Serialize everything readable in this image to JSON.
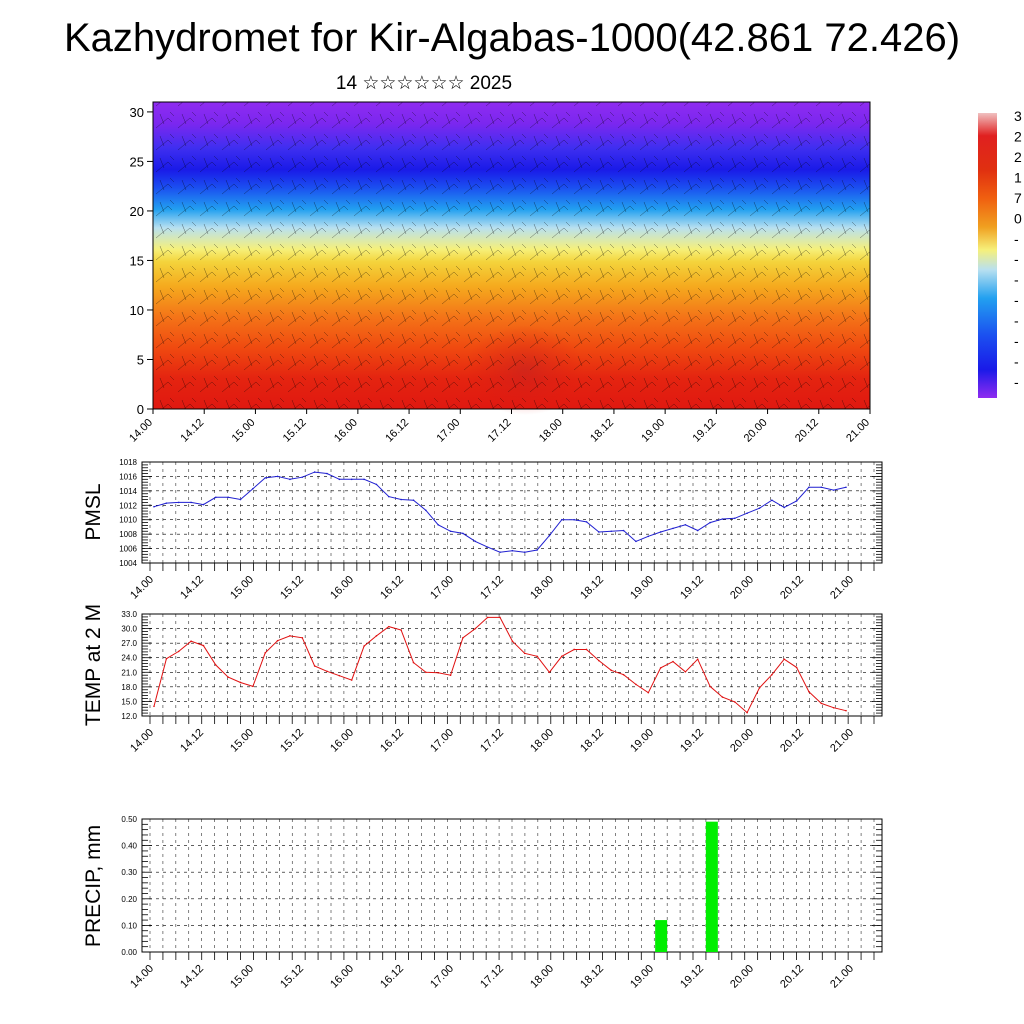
{
  "title": "Kazhydromet for Kir-Algabas-1000(42.861 72.426)",
  "subtitle": "14 ☆☆☆☆☆☆ 2025",
  "time_labels": [
    "14.00",
    "14.12",
    "15.00",
    "15.12",
    "16.00",
    "16.12",
    "17.00",
    "17.12",
    "18.00",
    "18.12",
    "19.00",
    "19.12",
    "20.00",
    "20.12",
    "21.00"
  ],
  "colors": {
    "pmsl_line": "#1f1fd0",
    "temp_line": "#e01010",
    "precip_bar": "#00ee00",
    "grid": "#000000"
  },
  "chart_data": [
    {
      "type": "heatmap",
      "title": "",
      "ylabel": "",
      "ylim": [
        0,
        31
      ],
      "y_ticks": [
        0,
        5,
        10,
        15,
        20,
        25,
        30
      ],
      "colorbar_labels": [
        "3",
        "2",
        "2",
        "1",
        "7",
        "0",
        "-",
        "-",
        "-",
        "-",
        "-",
        "-",
        "-",
        "-"
      ],
      "colorbar_range": [
        -55,
        35
      ],
      "note_wind": "wind barbs overlay"
    },
    {
      "type": "line",
      "ylabel": "PMSL",
      "ylim": [
        1004,
        1018
      ],
      "y_ticks": [
        "1004",
        "1006",
        "1008",
        "1010",
        "1012",
        "1014",
        "1016",
        "1018"
      ],
      "series": [
        {
          "values": [
            1011.8,
            1012.3,
            1012.4,
            1012.4,
            1012.1,
            1013.1,
            1013.1,
            1012.8,
            1014.3,
            1015.8,
            1016.0,
            1015.6,
            1015.9,
            1016.6,
            1016.4,
            1015.6,
            1015.6,
            1015.6,
            1014.9,
            1013.2,
            1012.8,
            1012.7,
            1011.3,
            1009.3,
            1008.4,
            1008.1,
            1007.0,
            1006.2,
            1005.5,
            1005.7,
            1005.5,
            1005.8,
            1007.8,
            1010.0,
            1010.0,
            1009.7,
            1008.3,
            1008.4,
            1008.5,
            1007.0,
            1007.7,
            1008.3,
            1008.8,
            1009.3,
            1008.5,
            1009.6,
            1010.1,
            1010.2,
            1010.9,
            1011.6,
            1012.7,
            1011.7,
            1012.6,
            1014.5,
            1014.5,
            1014.1,
            1014.5
          ]
        }
      ]
    },
    {
      "type": "line",
      "ylabel": "TEMP at 2 M",
      "ylim": [
        12,
        33
      ],
      "y_ticks": [
        "12.0",
        "15.0",
        "18.0",
        "21.0",
        "24.0",
        "27.0",
        "30.0",
        "33.0"
      ],
      "series": [
        {
          "values": [
            14.0,
            23.8,
            25.3,
            27.4,
            26.5,
            22.5,
            20.0,
            18.9,
            18.1,
            25.0,
            27.5,
            28.5,
            28.1,
            22.3,
            21.2,
            20.3,
            19.4,
            26.4,
            28.5,
            30.4,
            29.7,
            23.0,
            21.0,
            20.9,
            20.4,
            28.1,
            30.0,
            32.3,
            32.3,
            27.4,
            24.9,
            24.3,
            21.0,
            24.3,
            25.7,
            25.7,
            23.4,
            21.4,
            20.5,
            18.5,
            16.8,
            21.9,
            23.2,
            21.1,
            23.7,
            18.1,
            15.9,
            14.9,
            12.7,
            17.8,
            20.5,
            23.7,
            22.0,
            17.0,
            14.6,
            13.7,
            13.1
          ]
        }
      ]
    },
    {
      "type": "bar",
      "ylabel": "PRECIP, mm",
      "ylim": [
        0,
        0.5
      ],
      "y_ticks": [
        "0.00",
        "0.10",
        "0.20",
        "0.30",
        "0.40",
        "0.50"
      ],
      "values": [
        0,
        0,
        0,
        0,
        0,
        0,
        0,
        0,
        0,
        0,
        0,
        0,
        0,
        0,
        0,
        0,
        0,
        0,
        0,
        0,
        0,
        0,
        0,
        0,
        0,
        0,
        0,
        0,
        0,
        0,
        0,
        0,
        0,
        0,
        0,
        0,
        0,
        0,
        0,
        0,
        0.12,
        0,
        0,
        0,
        0.49,
        0,
        0,
        0,
        0,
        0,
        0,
        0,
        0,
        0,
        0,
        0,
        0
      ]
    }
  ]
}
